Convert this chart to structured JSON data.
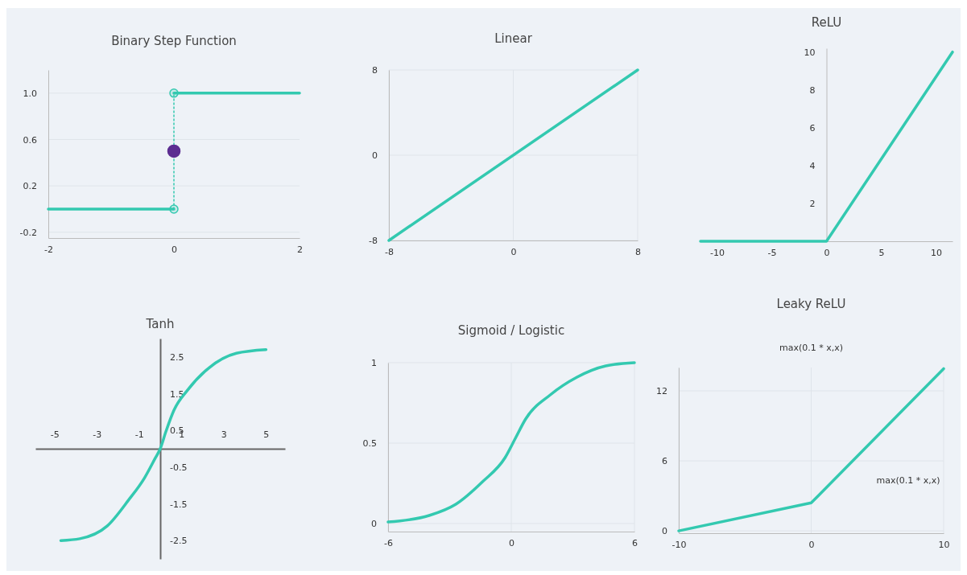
{
  "chart_data": [
    {
      "type": "line",
      "title": "Binary Step Function",
      "xlim": [
        -2,
        2
      ],
      "ylim": [
        -0.25,
        1.2
      ],
      "xticks": [
        -2,
        0,
        2
      ],
      "yticks": [
        -0.2,
        0.2,
        0.6,
        {
          "value": 1,
          "label": "1.0"
        }
      ],
      "grid": "y",
      "series": [
        {
          "color": "#33c9b0",
          "x": [
            -2,
            0
          ],
          "values": [
            0,
            0
          ]
        },
        {
          "color": "#33c9b0",
          "x": [
            0,
            2
          ],
          "values": [
            1,
            1
          ]
        },
        {
          "color": "#33c9b0",
          "x": [
            0,
            0
          ],
          "values": [
            0,
            1
          ],
          "line_style": "dotted"
        },
        {
          "type": "scatter",
          "color": "#33c9b0",
          "x": [
            0,
            0
          ],
          "values": [
            0,
            1
          ],
          "marker": "circle"
        },
        {
          "type": "scatter",
          "color": "#5c2d91",
          "x": [
            0
          ],
          "values": [
            0.5
          ],
          "marker": "circle"
        }
      ]
    },
    {
      "type": "line",
      "title": "Linear",
      "xlim": [
        -8,
        8
      ],
      "ylim": [
        -8,
        8
      ],
      "xticks": [
        -8,
        0,
        8
      ],
      "yticks": [
        -8,
        0,
        8
      ],
      "grid": true,
      "series": [
        {
          "color": "#33c9b0",
          "x": [
            -8,
            8
          ],
          "values": [
            -8,
            8
          ]
        }
      ]
    },
    {
      "type": "line",
      "title": "ReLU",
      "xlim": [
        -11.5,
        11.5
      ],
      "ylim": [
        0,
        10.2
      ],
      "xticks": [
        -10,
        -5,
        0,
        5,
        10
      ],
      "yticks": [
        2,
        4,
        6,
        8,
        10
      ],
      "series": [
        {
          "color": "#33c9b0",
          "x": [
            -11.5,
            0,
            11.5
          ],
          "values": [
            0,
            0,
            10
          ]
        }
      ]
    },
    {
      "type": "line",
      "title": "Tanh",
      "xlim": [
        -5.9,
        5.9
      ],
      "ylim": [
        -3,
        3
      ],
      "xticks": [
        -5,
        -3,
        -1,
        1,
        3,
        5
      ],
      "yticks": [
        -2.5,
        -1.5,
        -0.5,
        0.5,
        1.5,
        2.5
      ],
      "series": [
        {
          "color": "#33c9b0",
          "x": [
            -4.7,
            -3.8,
            -2.5,
            -1.5,
            -0.75,
            -0.24,
            0,
            0.27,
            0.65,
            1.3,
            2.3,
            3.6,
            5
          ],
          "values": [
            -2.5,
            -2.45,
            -2.1,
            -1.4,
            -0.8,
            -0.26,
            0,
            0.47,
            1.05,
            1.6,
            2.2,
            2.6,
            2.7
          ]
        }
      ]
    },
    {
      "type": "line",
      "title": "Sigmoid / Logistic",
      "xlim": [
        -6,
        6
      ],
      "ylim": [
        -0.05,
        1
      ],
      "xticks": [
        -6,
        0,
        6
      ],
      "yticks": [
        0,
        0.5,
        1
      ],
      "grid": true,
      "series": [
        {
          "color": "#33c9b0",
          "x": [
            -6,
            -4,
            -2.7,
            -1.4,
            -0.3,
            0.2,
            0.7,
            1.9,
            3.2,
            4.6,
            6
          ],
          "values": [
            0.01,
            0.05,
            0.12,
            0.26,
            0.41,
            0.53,
            0.65,
            0.8,
            0.91,
            0.98,
            1
          ]
        }
      ]
    },
    {
      "type": "line",
      "title": "Leaky ReLU",
      "subtitle": "max(0.1 * x,x)",
      "xlim": [
        -10,
        10
      ],
      "ylim": [
        -0.2,
        14
      ],
      "xticks": [
        -10,
        0,
        10
      ],
      "yticks": [
        0,
        6,
        12
      ],
      "grid": true,
      "annotations": [
        "max(0.1 * x,x)"
      ],
      "series": [
        {
          "color": "#33c9b0",
          "x": [
            -10,
            0,
            10
          ],
          "values": [
            0,
            2.4,
            13.9
          ]
        }
      ]
    }
  ]
}
